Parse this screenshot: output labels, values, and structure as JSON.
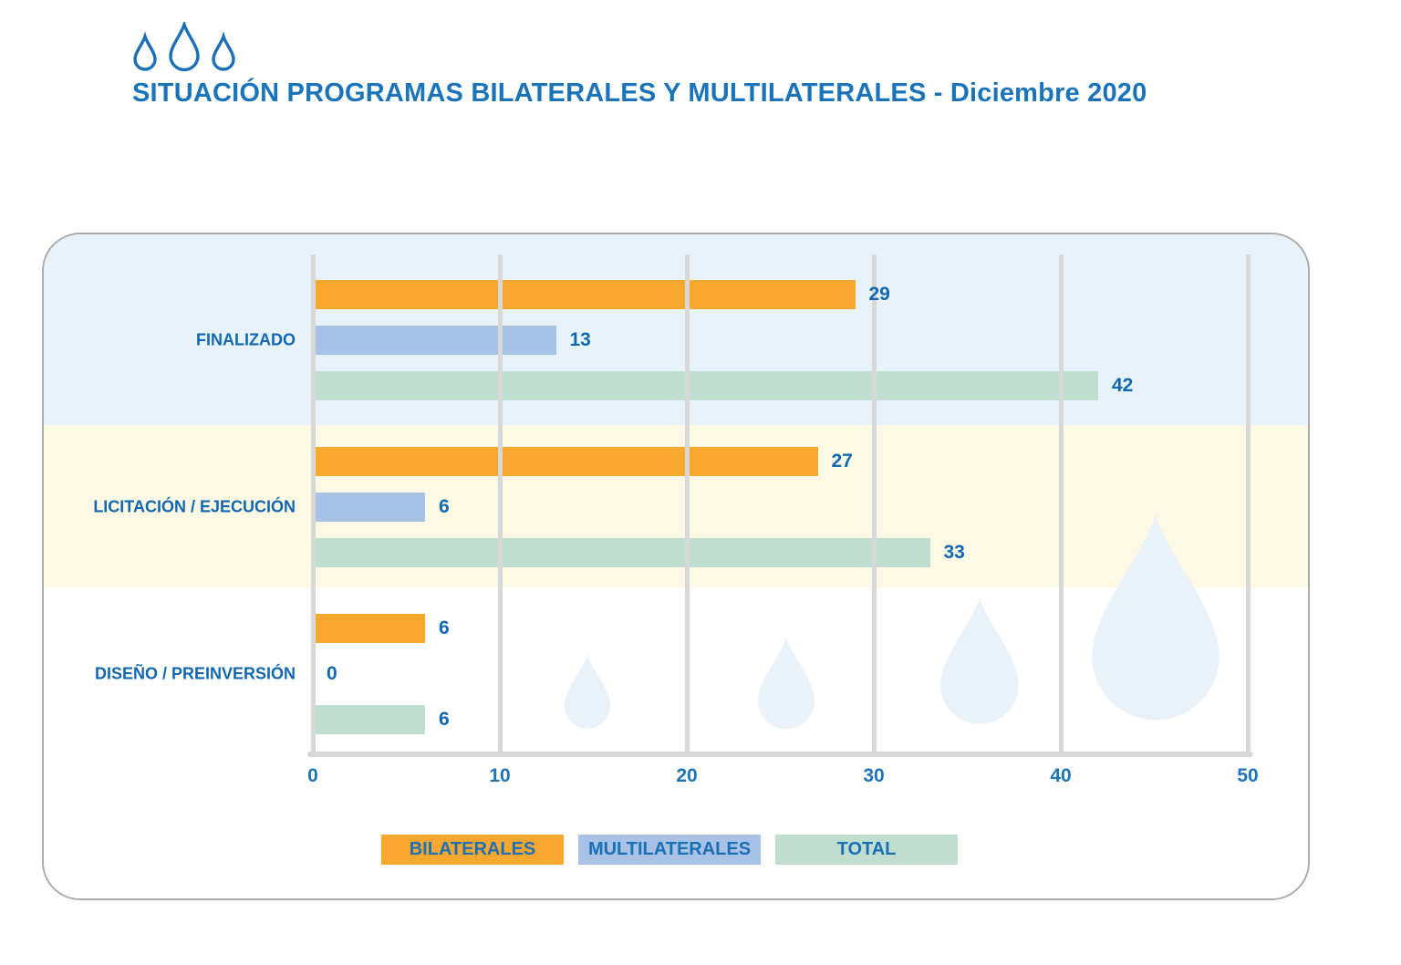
{
  "header": {
    "logo_icon": "three-water-drops",
    "title": "SITUACIÓN PROGRAMAS BILATERALES Y MULTILATERALES - Diciembre 2020"
  },
  "chart_data": {
    "type": "bar",
    "orientation": "horizontal",
    "title": "SITUACIÓN PROGRAMAS BILATERALES Y MULTILATERALES - Diciembre 2020",
    "categories": [
      "FINALIZADO",
      "LICITACIÓN / EJECUCIÓN",
      "DISEÑO / PREINVERSIÓN"
    ],
    "series": [
      {
        "name": "BILATERALES",
        "color": "#F8A82F",
        "values": [
          29,
          27,
          6
        ]
      },
      {
        "name": "MULTILATERALES",
        "color": "#A8C2E6",
        "values": [
          13,
          6,
          0
        ]
      },
      {
        "name": "TOTAL",
        "color": "#C0DECF",
        "values": [
          42,
          33,
          6
        ]
      }
    ],
    "x_axis": {
      "min": 0,
      "max": 50,
      "ticks": [
        0,
        10,
        20,
        30,
        40,
        50
      ]
    },
    "value_labels_shown": true,
    "grid": true,
    "legend_position": "bottom",
    "category_band_colors": [
      "#E7F2FB",
      "#FDF9E4",
      "#FFFFFF"
    ]
  },
  "colors": {
    "title_blue": "#1B74B9",
    "label_blue": "#1268B0",
    "gridline_gray": "#D8D8D8",
    "panel_border_gray": "#ABABAB",
    "decor_drop_blue": "#EAF2F9",
    "logo_drop_blue": "#1C6FB7"
  }
}
